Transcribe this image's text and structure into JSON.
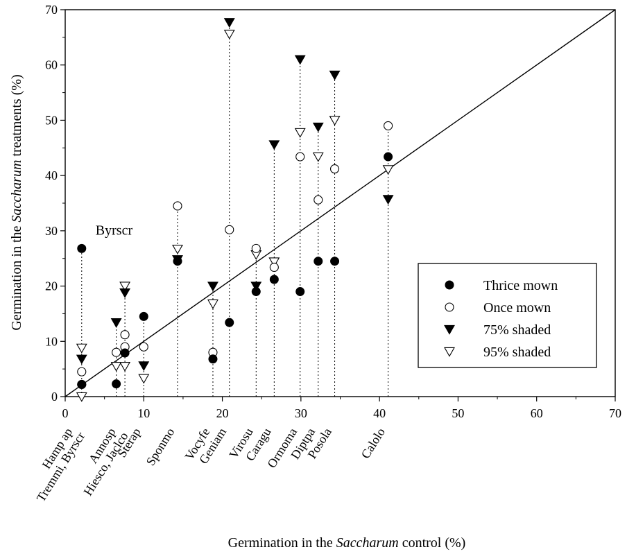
{
  "chart_data": {
    "type": "scatter",
    "xlabel": {
      "prefix": "Germination in the ",
      "italic": "Saccharum",
      "suffix": " control (%)"
    },
    "ylabel": {
      "prefix": "Germination in the ",
      "italic": "Saccharum",
      "suffix": " treatments (%)"
    },
    "xlim": [
      0,
      70
    ],
    "ylim": [
      0,
      70
    ],
    "xticks": [
      0,
      10,
      20,
      30,
      40,
      50,
      60,
      70
    ],
    "yticks": [
      0,
      10,
      20,
      30,
      40,
      50,
      60,
      70
    ],
    "grid": false,
    "reference_line": "1:1",
    "legend_position": "right",
    "series": [
      {
        "name": "Thrice mown",
        "marker": "filled-circle",
        "points": [
          {
            "x": 2.1,
            "y": 26.8
          },
          {
            "x": 2.1,
            "y": 2.2
          },
          {
            "x": 6.5,
            "y": 2.3
          },
          {
            "x": 7.6,
            "y": 7.9
          },
          {
            "x": 10.0,
            "y": 14.5
          },
          {
            "x": 14.3,
            "y": 24.5
          },
          {
            "x": 18.8,
            "y": 6.8
          },
          {
            "x": 20.9,
            "y": 13.4
          },
          {
            "x": 24.3,
            "y": 19.0
          },
          {
            "x": 26.6,
            "y": 21.2
          },
          {
            "x": 29.9,
            "y": 19.0
          },
          {
            "x": 32.2,
            "y": 24.5
          },
          {
            "x": 34.3,
            "y": 24.5
          },
          {
            "x": 41.1,
            "y": 43.4
          }
        ]
      },
      {
        "name": "Once mown",
        "marker": "open-circle",
        "points": [
          {
            "x": 2.1,
            "y": 4.5
          },
          {
            "x": 2.1,
            "y": 2.2
          },
          {
            "x": 6.5,
            "y": 8.0
          },
          {
            "x": 7.6,
            "y": 9.0
          },
          {
            "x": 7.6,
            "y": 11.2
          },
          {
            "x": 10.0,
            "y": 9.0
          },
          {
            "x": 14.3,
            "y": 34.5
          },
          {
            "x": 18.8,
            "y": 8.0
          },
          {
            "x": 20.9,
            "y": 30.2
          },
          {
            "x": 24.3,
            "y": 26.8
          },
          {
            "x": 26.6,
            "y": 23.4
          },
          {
            "x": 29.9,
            "y": 43.4
          },
          {
            "x": 32.2,
            "y": 35.6
          },
          {
            "x": 34.3,
            "y": 41.2
          },
          {
            "x": 41.1,
            "y": 49.0
          }
        ]
      },
      {
        "name": "75% shaded",
        "marker": "filled-triangle-down",
        "points": [
          {
            "x": 2.1,
            "y": 6.8
          },
          {
            "x": 6.5,
            "y": 13.4
          },
          {
            "x": 7.6,
            "y": 18.8
          },
          {
            "x": 10.0,
            "y": 5.6
          },
          {
            "x": 14.3,
            "y": 24.8
          },
          {
            "x": 18.8,
            "y": 20.0
          },
          {
            "x": 20.9,
            "y": 67.7
          },
          {
            "x": 24.3,
            "y": 20.0
          },
          {
            "x": 26.6,
            "y": 45.6
          },
          {
            "x": 29.9,
            "y": 61.0
          },
          {
            "x": 32.2,
            "y": 48.8
          },
          {
            "x": 34.3,
            "y": 58.2
          },
          {
            "x": 41.1,
            "y": 35.7
          }
        ]
      },
      {
        "name": "95% shaded",
        "marker": "open-triangle-down",
        "points": [
          {
            "x": 2.1,
            "y": 8.8
          },
          {
            "x": 2.1,
            "y": 0.0
          },
          {
            "x": 6.5,
            "y": 5.5
          },
          {
            "x": 7.6,
            "y": 5.5
          },
          {
            "x": 7.6,
            "y": 20.0
          },
          {
            "x": 10.0,
            "y": 3.3
          },
          {
            "x": 14.3,
            "y": 26.7
          },
          {
            "x": 18.8,
            "y": 16.8
          },
          {
            "x": 20.9,
            "y": 65.6
          },
          {
            "x": 24.3,
            "y": 25.7
          },
          {
            "x": 26.6,
            "y": 24.4
          },
          {
            "x": 29.9,
            "y": 47.8
          },
          {
            "x": 32.2,
            "y": 43.4
          },
          {
            "x": 34.3,
            "y": 50.0
          },
          {
            "x": 41.1,
            "y": 41.1
          }
        ]
      }
    ],
    "dotted_drop_lines": [
      {
        "x": 2.1,
        "top": 26.8
      },
      {
        "x": 6.5,
        "top": 13.4
      },
      {
        "x": 7.6,
        "top": 20.0
      },
      {
        "x": 10.0,
        "top": 14.5
      },
      {
        "x": 14.3,
        "top": 34.5
      },
      {
        "x": 18.8,
        "top": 20.0
      },
      {
        "x": 20.9,
        "top": 67.7
      },
      {
        "x": 24.3,
        "top": 26.8
      },
      {
        "x": 26.6,
        "top": 45.6
      },
      {
        "x": 29.9,
        "top": 61.0
      },
      {
        "x": 32.2,
        "top": 48.8
      },
      {
        "x": 34.3,
        "top": 58.2
      },
      {
        "x": 41.1,
        "top": 49.0
      }
    ],
    "species_labels": [
      {
        "x": 2.1,
        "lines": [
          "Hamp ap",
          "Tremmi, Byrscr"
        ]
      },
      {
        "x": 7.6,
        "lines": [
          "Annosp",
          "Hiesco, Jaclco"
        ]
      },
      {
        "x": 10.0,
        "lines": [
          "Sterap"
        ]
      },
      {
        "x": 14.3,
        "lines": [
          "Sponmo"
        ]
      },
      {
        "x": 18.8,
        "lines": [
          "Vocyfe"
        ]
      },
      {
        "x": 20.9,
        "lines": [
          "Geniam"
        ]
      },
      {
        "x": 24.3,
        "lines": [
          "Virosu"
        ]
      },
      {
        "x": 26.6,
        "lines": [
          "Caragu"
        ]
      },
      {
        "x": 29.9,
        "lines": [
          "Ormoma"
        ]
      },
      {
        "x": 32.2,
        "lines": [
          "Diptpa"
        ]
      },
      {
        "x": 34.3,
        "lines": [
          "Posola"
        ]
      },
      {
        "x": 41.1,
        "lines": [
          "Calolo"
        ]
      }
    ],
    "annotations": [
      {
        "text": "Byrscr",
        "x": 2.1,
        "y": 26.8
      }
    ]
  }
}
